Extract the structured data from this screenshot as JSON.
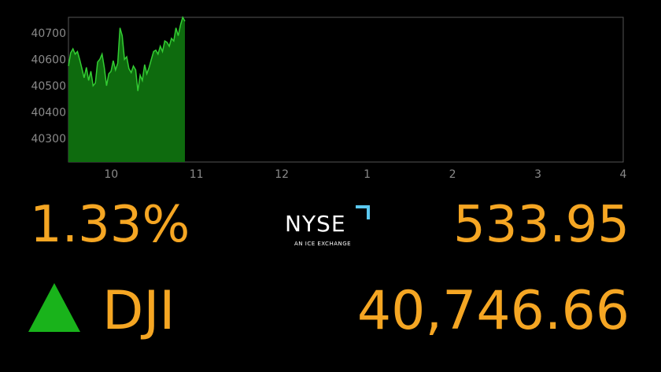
{
  "chart_data": {
    "type": "area",
    "x_ticks": [
      "10",
      "11",
      "12",
      "1",
      "2",
      "3",
      "4"
    ],
    "y_ticks": [
      "40700",
      "40600",
      "40500",
      "40400",
      "40300"
    ],
    "ylim": [
      40210,
      40760
    ],
    "series": [
      {
        "values": [
          40575,
          40625,
          40640,
          40620,
          40630,
          40600,
          40565,
          40530,
          40570,
          40520,
          40555,
          40500,
          40510,
          40590,
          40600,
          40620,
          40570,
          40500,
          40545,
          40555,
          40595,
          40560,
          40585,
          40720,
          40690,
          40600,
          40610,
          40565,
          40550,
          40575,
          40560,
          40480,
          40540,
          40520,
          40580,
          40545,
          40570,
          40600,
          40630,
          40635,
          40620,
          40650,
          40630,
          40670,
          40665,
          40650,
          40680,
          40670,
          40720,
          40690,
          40730,
          40760,
          40745
        ],
        "color": "#33cc33"
      }
    ],
    "grid": false
  },
  "ticker": {
    "change_pct": "1.33%",
    "change_pts": "533.95",
    "symbol": "DJI",
    "value": "40,746.66",
    "direction": "up"
  },
  "logo": {
    "name": "NYSE",
    "sub": "AN ICE EXCHANGE"
  },
  "colors": {
    "accent": "#f5a623",
    "up": "#19b31b",
    "line": "#33cc33",
    "logo_mark": "#5bc8f0"
  }
}
